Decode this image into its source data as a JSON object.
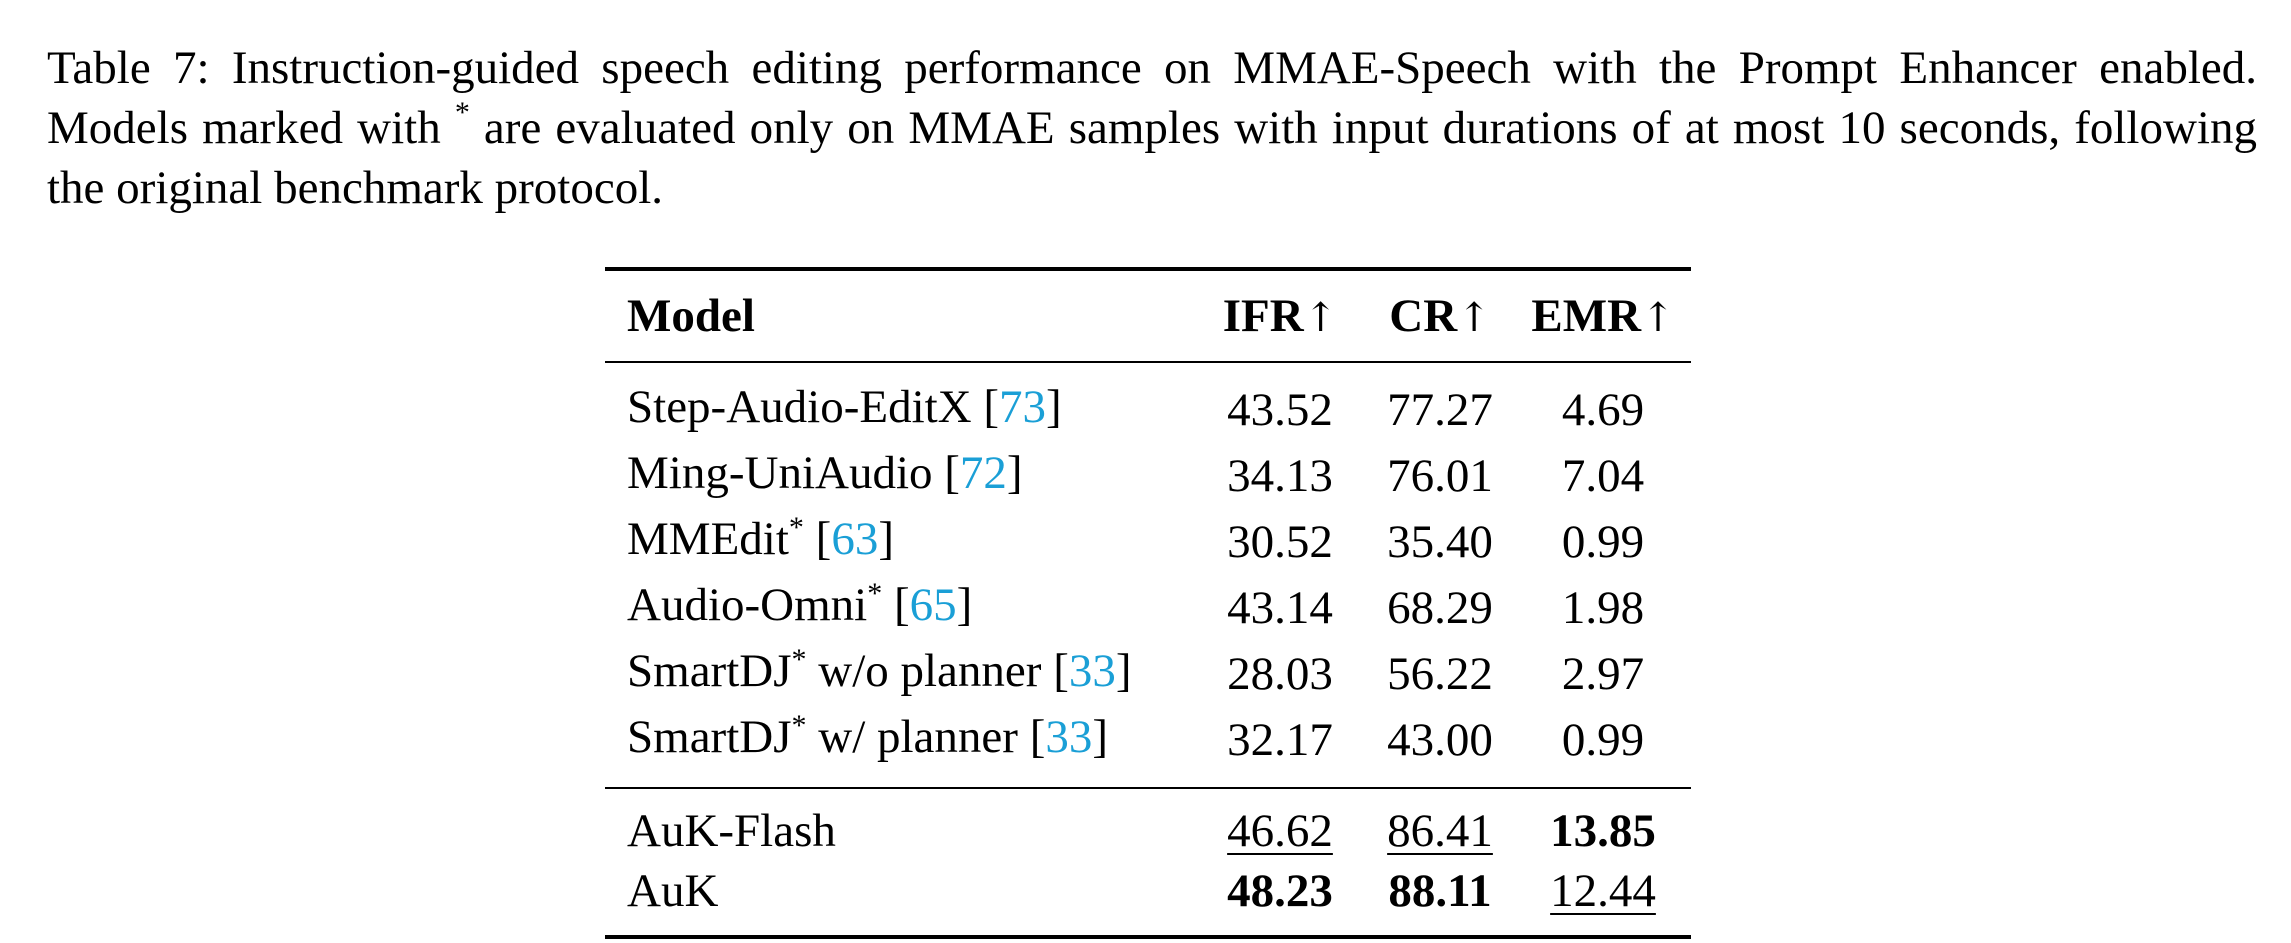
{
  "caption": {
    "part1": "Table 7: Instruction-guided speech editing performance on MMAE-Speech with the Prompt Enhancer enabled. Models marked with ",
    "marker": "*",
    "part2": " are evaluated only on MMAE samples with input durations of at most 10 seconds, following the original benchmark protocol."
  },
  "table": {
    "headers": {
      "model": "Model",
      "ifr": "IFR",
      "cr": "CR",
      "emr": "EMR",
      "arrow": "↑"
    },
    "rows": [
      {
        "name": "Step-Audio-EditX",
        "star": "",
        "suffix": "",
        "cite": "73",
        "ifr": "43.52",
        "cr": "77.27",
        "emr": "4.69"
      },
      {
        "name": "Ming-UniAudio",
        "star": "",
        "suffix": "",
        "cite": "72",
        "ifr": "34.13",
        "cr": "76.01",
        "emr": "7.04"
      },
      {
        "name": "MMEdit",
        "star": "*",
        "suffix": "",
        "cite": "63",
        "ifr": "30.52",
        "cr": "35.40",
        "emr": "0.99"
      },
      {
        "name": "Audio-Omni",
        "star": "*",
        "suffix": "",
        "cite": "65",
        "ifr": "43.14",
        "cr": "68.29",
        "emr": "1.98"
      },
      {
        "name": "SmartDJ",
        "star": "*",
        "suffix": " w/o planner",
        "cite": "33",
        "ifr": "28.03",
        "cr": "56.22",
        "emr": "2.97"
      },
      {
        "name": "SmartDJ",
        "star": "*",
        "suffix": " w/ planner",
        "cite": "33",
        "ifr": "32.17",
        "cr": "43.00",
        "emr": "0.99"
      }
    ],
    "ours": [
      {
        "name": "AuK-Flash",
        "ifr": "46.62",
        "cr": "86.41",
        "emr": "13.85"
      },
      {
        "name": "AuK",
        "ifr": "48.23",
        "cr": "88.11",
        "emr": "12.44"
      }
    ]
  }
}
